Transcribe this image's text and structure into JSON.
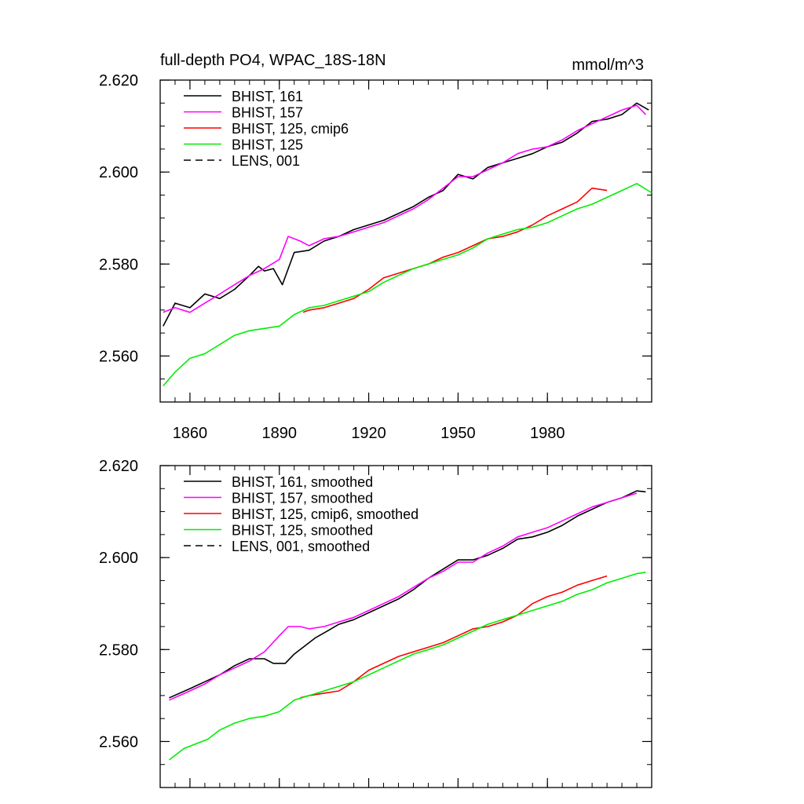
{
  "page": {
    "title": "full-depth PO4, WPAC_18S-18N",
    "units": "mmol/m^3"
  },
  "chart_data": [
    {
      "type": "line",
      "panel": "top",
      "xlim": [
        1850,
        2015
      ],
      "ylim": [
        2.55,
        2.62
      ],
      "x_ticks": [
        "1860",
        "1890",
        "1920",
        "1950",
        "1980"
      ],
      "x_tick_values": [
        1860,
        1890,
        1920,
        1950,
        1980
      ],
      "y_ticks": [
        "2.560",
        "2.580",
        "2.600",
        "2.620"
      ],
      "y_tick_values": [
        2.56,
        2.58,
        2.6,
        2.62
      ],
      "legend_position": "top-left",
      "series": [
        {
          "name": "BHIST, 161",
          "color": "#000000",
          "dash": "solid",
          "x": [
            1851,
            1855,
            1860,
            1865,
            1870,
            1875,
            1880,
            1883,
            1885,
            1888,
            1891,
            1895,
            1900,
            1905,
            1910,
            1915,
            1920,
            1925,
            1930,
            1935,
            1940,
            1945,
            1950,
            1955,
            1960,
            1965,
            1970,
            1975,
            1980,
            1985,
            1990,
            1995,
            2000,
            2005,
            2010,
            2014
          ],
          "y": [
            2.5665,
            2.5715,
            2.5705,
            2.5735,
            2.5725,
            2.5745,
            2.5775,
            2.5795,
            2.5785,
            2.579,
            2.5755,
            2.5825,
            2.583,
            2.585,
            2.586,
            2.5875,
            2.5885,
            2.5895,
            2.591,
            2.5925,
            2.5945,
            2.596,
            2.5995,
            2.5985,
            2.601,
            2.602,
            2.603,
            2.604,
            2.6055,
            2.6065,
            2.6085,
            2.611,
            2.6115,
            2.6125,
            2.615,
            2.6135
          ]
        },
        {
          "name": "BHIST, 157",
          "color": "#ff00ff",
          "dash": "solid",
          "x": [
            1851,
            1855,
            1860,
            1865,
            1870,
            1875,
            1880,
            1885,
            1890,
            1893,
            1897,
            1900,
            1905,
            1910,
            1915,
            1920,
            1925,
            1930,
            1935,
            1940,
            1945,
            1950,
            1955,
            1960,
            1965,
            1970,
            1975,
            1980,
            1985,
            1990,
            1995,
            2000,
            2005,
            2010,
            2013
          ],
          "y": [
            2.5695,
            2.5705,
            2.5695,
            2.5715,
            2.5735,
            2.5755,
            2.5775,
            2.579,
            2.581,
            2.586,
            2.585,
            2.584,
            2.5855,
            2.586,
            2.587,
            2.588,
            2.589,
            2.5905,
            2.592,
            2.594,
            2.5965,
            2.599,
            2.599,
            2.6005,
            2.602,
            2.604,
            2.605,
            2.6055,
            2.607,
            2.609,
            2.6105,
            2.612,
            2.6135,
            2.6145,
            2.6125
          ]
        },
        {
          "name": "BHIST, 125, cmip6",
          "color": "#ff0000",
          "dash": "solid",
          "x": [
            1898,
            1900,
            1905,
            1910,
            1915,
            1920,
            1925,
            1930,
            1935,
            1940,
            1945,
            1950,
            1955,
            1960,
            1965,
            1970,
            1975,
            1980,
            1985,
            1990,
            1995,
            2000
          ],
          "y": [
            2.5695,
            2.57,
            2.5705,
            2.5715,
            2.5725,
            2.5745,
            2.577,
            2.578,
            2.579,
            2.58,
            2.5815,
            2.5825,
            2.584,
            2.5855,
            2.586,
            2.587,
            2.5885,
            2.5905,
            2.592,
            2.5935,
            2.5965,
            2.596
          ]
        },
        {
          "name": "BHIST, 125",
          "color": "#00ee00",
          "dash": "solid",
          "x": [
            1851,
            1855,
            1860,
            1865,
            1870,
            1875,
            1880,
            1885,
            1890,
            1895,
            1900,
            1905,
            1910,
            1915,
            1920,
            1925,
            1930,
            1935,
            1940,
            1945,
            1950,
            1955,
            1960,
            1965,
            1970,
            1975,
            1980,
            1985,
            1990,
            1995,
            2000,
            2005,
            2010,
            2015
          ],
          "y": [
            2.5535,
            2.5565,
            2.5595,
            2.5605,
            2.5625,
            2.5645,
            2.5655,
            2.566,
            2.5665,
            2.569,
            2.5705,
            2.571,
            2.572,
            2.573,
            2.574,
            2.576,
            2.5775,
            2.579,
            2.58,
            2.581,
            2.582,
            2.5835,
            2.5855,
            2.5865,
            2.5875,
            2.588,
            2.589,
            2.5905,
            2.592,
            2.593,
            2.5945,
            2.596,
            2.5975,
            2.5955
          ]
        },
        {
          "name": "LENS, 001",
          "color": "#000000",
          "dash": "dashed",
          "x": [],
          "y": []
        }
      ]
    },
    {
      "type": "line",
      "panel": "bottom",
      "xlim": [
        1850,
        2015
      ],
      "ylim": [
        2.55,
        2.62
      ],
      "x_ticks": [],
      "x_tick_values": [
        1860,
        1890,
        1920,
        1950,
        1980
      ],
      "y_ticks": [
        "2.560",
        "2.580",
        "2.600",
        "2.620"
      ],
      "y_tick_values": [
        2.56,
        2.58,
        2.6,
        2.62
      ],
      "legend_position": "top-left",
      "series": [
        {
          "name": "BHIST, 161, smoothed",
          "color": "#000000",
          "dash": "solid",
          "x": [
            1853,
            1860,
            1865,
            1870,
            1875,
            1880,
            1885,
            1888,
            1892,
            1895,
            1898,
            1902,
            1906,
            1910,
            1915,
            1920,
            1925,
            1930,
            1935,
            1940,
            1945,
            1950,
            1955,
            1960,
            1965,
            1970,
            1975,
            1980,
            1985,
            1990,
            1995,
            2000,
            2005,
            2010,
            2013
          ],
          "y": [
            2.5695,
            2.5715,
            2.573,
            2.5745,
            2.5765,
            2.578,
            2.578,
            2.577,
            2.577,
            2.579,
            2.5805,
            2.5825,
            2.584,
            2.5855,
            2.5865,
            2.588,
            2.5895,
            2.591,
            2.593,
            2.5955,
            2.5975,
            2.5995,
            2.5995,
            2.6005,
            2.602,
            2.604,
            2.6045,
            2.6055,
            2.607,
            2.609,
            2.6105,
            2.612,
            2.613,
            2.6145,
            2.6143
          ]
        },
        {
          "name": "BHIST, 157, smoothed",
          "color": "#ff00ff",
          "dash": "solid",
          "x": [
            1853,
            1860,
            1865,
            1870,
            1875,
            1880,
            1885,
            1890,
            1893,
            1897,
            1900,
            1905,
            1910,
            1915,
            1920,
            1925,
            1930,
            1935,
            1940,
            1945,
            1950,
            1955,
            1960,
            1965,
            1970,
            1975,
            1980,
            1985,
            1990,
            1995,
            2000,
            2005,
            2010
          ],
          "y": [
            2.569,
            2.571,
            2.5725,
            2.5745,
            2.576,
            2.5775,
            2.5795,
            2.583,
            2.585,
            2.585,
            2.5845,
            2.585,
            2.586,
            2.587,
            2.5885,
            2.59,
            2.5915,
            2.5935,
            2.5955,
            2.597,
            2.599,
            2.599,
            2.601,
            2.6025,
            2.6045,
            2.6055,
            2.6065,
            2.608,
            2.6095,
            2.611,
            2.612,
            2.613,
            2.614
          ]
        },
        {
          "name": "BHIST, 125, cmip6, smoothed",
          "color": "#ff0000",
          "dash": "solid",
          "x": [
            1897,
            1900,
            1905,
            1910,
            1915,
            1920,
            1925,
            1930,
            1935,
            1940,
            1945,
            1950,
            1955,
            1960,
            1965,
            1970,
            1975,
            1980,
            1985,
            1990,
            1995,
            2000
          ],
          "y": [
            2.5695,
            2.57,
            2.5705,
            2.571,
            2.573,
            2.5755,
            2.577,
            2.5785,
            2.5795,
            2.5805,
            2.5815,
            2.583,
            2.5845,
            2.585,
            2.586,
            2.5875,
            2.59,
            2.5915,
            2.5925,
            2.594,
            2.595,
            2.596
          ]
        },
        {
          "name": "BHIST, 125, smoothed",
          "color": "#00ee00",
          "dash": "solid",
          "x": [
            1853,
            1858,
            1862,
            1866,
            1870,
            1875,
            1880,
            1885,
            1890,
            1895,
            1900,
            1905,
            1910,
            1915,
            1920,
            1925,
            1930,
            1935,
            1940,
            1945,
            1950,
            1955,
            1960,
            1965,
            1970,
            1975,
            1980,
            1985,
            1990,
            1995,
            2000,
            2005,
            2010,
            2013
          ],
          "y": [
            2.556,
            2.5585,
            2.5595,
            2.5605,
            2.5625,
            2.564,
            2.565,
            2.5655,
            2.5665,
            2.569,
            2.57,
            2.571,
            2.572,
            2.573,
            2.5745,
            2.576,
            2.5775,
            2.579,
            2.58,
            2.581,
            2.5825,
            2.584,
            2.5855,
            2.5865,
            2.5875,
            2.5885,
            2.5895,
            2.5905,
            2.592,
            2.593,
            2.5945,
            2.5955,
            2.5965,
            2.5968
          ]
        },
        {
          "name": "LENS, 001, smoothed",
          "color": "#000000",
          "dash": "dashed",
          "x": [],
          "y": []
        }
      ]
    }
  ]
}
